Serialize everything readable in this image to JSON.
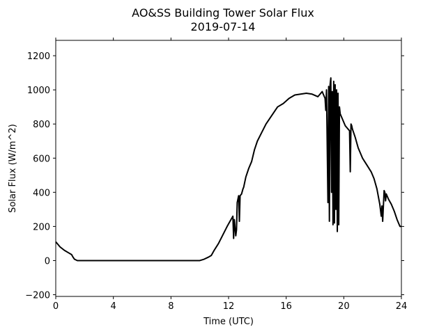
{
  "chart_data": {
    "type": "line",
    "title": "AO&SS Building Tower Solar Flux",
    "subtitle": "2019-07-14",
    "xlabel": "Time (UTC)",
    "ylabel": "Solar Flux (W/m^2)",
    "xlim": [
      0,
      24
    ],
    "ylim": [
      -210,
      1290
    ],
    "x_ticks": [
      0,
      4,
      8,
      12,
      16,
      20,
      24
    ],
    "y_ticks": [
      -200,
      0,
      200,
      400,
      600,
      800,
      1000,
      1200
    ],
    "grid": false,
    "line_color": "#000000",
    "series": [
      {
        "x": [
          0,
          0.3,
          0.6,
          0.9,
          1.1,
          1.2,
          1.3,
          1.5,
          2,
          4,
          6,
          8,
          10,
          10.3,
          10.6,
          10.8,
          11,
          11.3,
          11.6,
          11.9,
          12.1,
          12.3,
          12.35,
          12.4,
          12.5,
          12.55,
          12.6,
          12.7,
          12.75,
          12.8,
          12.9,
          13.0,
          13.05,
          13.1,
          13.2,
          13.4,
          13.6,
          13.8,
          14,
          14.3,
          14.6,
          15,
          15.4,
          15.8,
          16.2,
          16.6,
          17,
          17.4,
          17.8,
          18.2,
          18.5,
          18.7,
          18.75,
          18.8,
          18.9,
          18.95,
          19.0,
          19.05,
          19.1,
          19.15,
          19.2,
          19.25,
          19.3,
          19.35,
          19.4,
          19.45,
          19.5,
          19.55,
          19.6,
          19.65,
          19.7,
          19.75,
          19.8,
          19.9,
          20.0,
          20.1,
          20.2,
          20.4,
          20.45,
          20.5,
          20.55,
          20.6,
          20.8,
          21,
          21.3,
          21.6,
          21.9,
          22.1,
          22.3,
          22.5,
          22.6,
          22.65,
          22.7,
          22.8,
          22.85,
          22.9,
          22.95,
          23.0,
          23.1,
          23.3,
          23.5,
          23.7,
          23.9,
          24
        ],
        "y": [
          110,
          80,
          60,
          45,
          35,
          20,
          8,
          0,
          0,
          0,
          0,
          0,
          0,
          8,
          20,
          30,
          60,
          100,
          150,
          200,
          230,
          260,
          130,
          240,
          145,
          180,
          340,
          380,
          230,
          380,
          390,
          420,
          430,
          450,
          490,
          540,
          580,
          650,
          700,
          750,
          800,
          850,
          900,
          920,
          950,
          970,
          975,
          980,
          975,
          960,
          990,
          950,
          880,
          1000,
          340,
          1020,
          230,
          1030,
          1070,
          400,
          990,
          210,
          1050,
          220,
          1030,
          300,
          1000,
          170,
          980,
          210,
          900,
          860,
          850,
          830,
          810,
          790,
          780,
          760,
          520,
          800,
          790,
          770,
          720,
          660,
          600,
          560,
          520,
          480,
          420,
          330,
          260,
          320,
          230,
          410,
          400,
          350,
          390,
          380,
          360,
          330,
          290,
          240,
          200,
          200
        ]
      }
    ]
  }
}
